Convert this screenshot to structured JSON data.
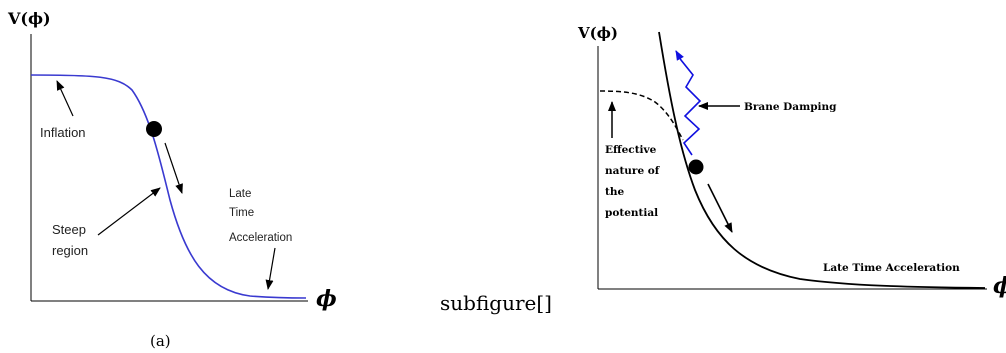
{
  "left_panel": {
    "y_axis_label": "V(ϕ)",
    "x_axis_label": "ϕ",
    "annotations": {
      "inflation": "Inflation",
      "steep_line1": "Steep",
      "steep_line2": "region",
      "late_line1": "Late",
      "late_line2": "Time",
      "late_line3": "Acceleration"
    },
    "caption": "(a)",
    "curve_color": "#3a3ad0"
  },
  "right_panel": {
    "y_axis_label": "V(ϕ)",
    "x_axis_label": "ϕ",
    "annotations": {
      "brane_damping": "Brane Damping",
      "effective_line1": "Effective",
      "effective_line2": "nature of",
      "effective_line3": "the",
      "effective_line4": "potential",
      "late_time_acceleration": "Late Time Acceleration"
    },
    "zigzag_color": "#1010e0"
  },
  "between_text": "subfigure[]"
}
